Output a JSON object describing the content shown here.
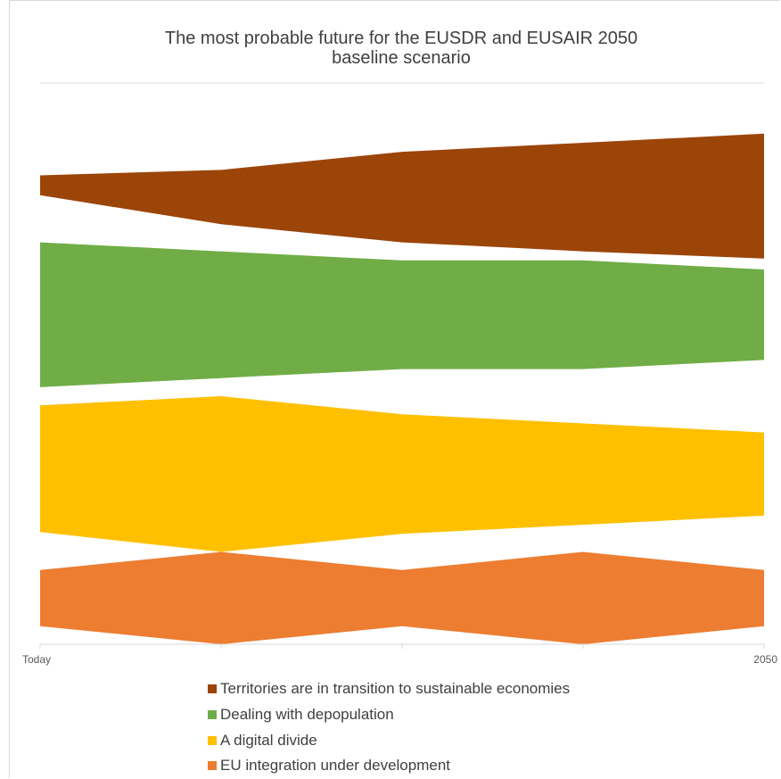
{
  "chart_data": {
    "type": "area",
    "title": "The most probable future for the EUSDR and EUSAIR 2050",
    "subtitle": "baseline scenario",
    "x": [
      "Today",
      "",
      "",
      "",
      "2050"
    ],
    "xlabel": "",
    "ylabel": "",
    "ylim": [
      0,
      31
    ],
    "grid": false,
    "legend_position": "bottom",
    "series": [
      {
        "name": "Territories are in transition to sustainable economies",
        "color": "#9c4509",
        "bottom": [
          24.8,
          23.2,
          22.2,
          21.7,
          21.3
        ],
        "top": [
          25.9,
          26.2,
          27.2,
          27.7,
          28.2
        ]
      },
      {
        "name": "Dealing with depopulation",
        "color": "#70ad47",
        "bottom": [
          14.2,
          14.7,
          15.2,
          15.2,
          15.7
        ],
        "top": [
          22.2,
          21.7,
          21.2,
          21.2,
          20.7
        ]
      },
      {
        "name": "A digital divide",
        "color": "#ffc000",
        "bottom": [
          6.2,
          5.1,
          6.1,
          6.6,
          7.1
        ],
        "top": [
          13.2,
          13.7,
          12.7,
          12.2,
          11.7
        ]
      },
      {
        "name": "EU integration under development",
        "color": "#ed7d31",
        "bottom": [
          1.0,
          0.0,
          1.0,
          0.0,
          1.0
        ],
        "top": [
          4.1,
          5.1,
          4.1,
          5.1,
          4.1
        ]
      }
    ]
  }
}
